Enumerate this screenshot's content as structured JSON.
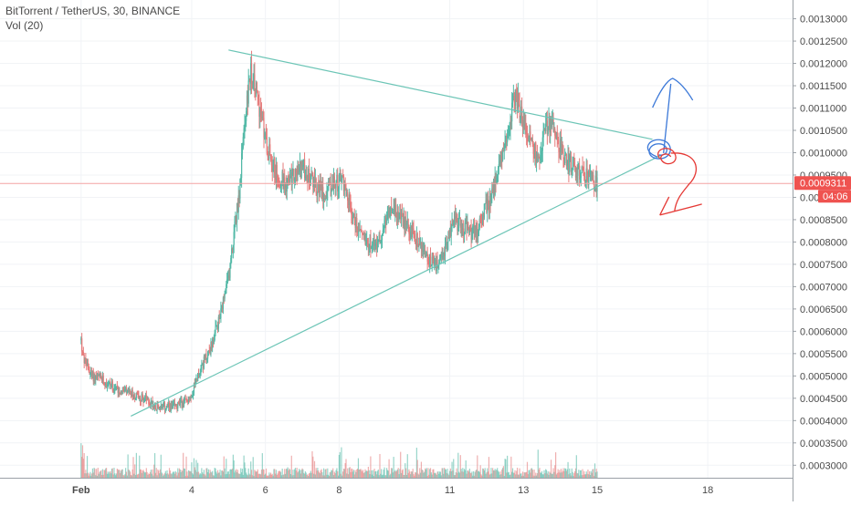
{
  "header": {
    "symbol_line": "BitTorrent / TetherUS, 30, BINANCE",
    "volume_line": "Vol (20)"
  },
  "colors": {
    "up": "#53b9a7",
    "down": "#e57b7b",
    "trendline": "#6cc5b6",
    "price_line": "#f3a3a3",
    "price_badge": "#ef5350",
    "axis_text": "#4a4a4a",
    "grid": "#f1f3f6",
    "blue_drawing": "#3b78d8",
    "red_drawing": "#e53935"
  },
  "chart_data": {
    "type": "candlestick",
    "title": "BitTorrent / TetherUS, 30, BINANCE",
    "xlabel": "",
    "ylabel": "",
    "x_tick_labels": [
      "Feb",
      "4",
      "6",
      "8",
      "11",
      "13",
      "15",
      "18"
    ],
    "x_tick_days": [
      1,
      4,
      6,
      8,
      11,
      13,
      15,
      18
    ],
    "x_range_days": [
      -1.2,
      20.3
    ],
    "y_tick_labels": [
      "0.0003000",
      "0.0003500",
      "0.0004000",
      "0.0004500",
      "0.0005000",
      "0.0005500",
      "0.0006000",
      "0.0006500",
      "0.0007000",
      "0.0007500",
      "0.0008000",
      "0.0008500",
      "0.0009000",
      "0.0009500",
      "0.0010000",
      "0.0010500",
      "0.0011000",
      "0.0011500",
      "0.0012000",
      "0.0012500",
      "0.0013000"
    ],
    "ylim": [
      0.000272,
      0.001342
    ],
    "price_path": {
      "x_days": [
        1.0,
        1.05,
        1.3,
        1.6,
        2.0,
        2.3,
        2.7,
        3.1,
        3.5,
        3.8,
        4.0,
        4.2,
        4.5,
        4.8,
        5.0,
        5.15,
        5.3,
        5.45,
        5.6,
        5.8,
        6.0,
        6.3,
        6.6,
        7.0,
        7.3,
        7.6,
        7.9,
        8.1,
        8.4,
        8.7,
        9.0,
        9.2,
        9.4,
        9.6,
        9.8,
        10.1,
        10.4,
        10.7,
        10.9,
        11.1,
        11.4,
        11.7,
        12.0,
        12.2,
        12.4,
        12.6,
        12.8,
        13.0,
        13.2,
        13.4,
        13.6,
        13.8,
        14.0,
        14.2,
        14.4,
        14.6,
        14.8,
        15.0
      ],
      "prices": [
        0.00058,
        0.00054,
        0.0005,
        0.00049,
        0.00047,
        0.00046,
        0.00045,
        0.00043,
        0.00043,
        0.00044,
        0.00046,
        0.00051,
        0.00056,
        0.00064,
        0.00072,
        0.00082,
        0.00092,
        0.00108,
        0.00118,
        0.00112,
        0.00103,
        0.00095,
        0.00093,
        0.00097,
        0.00093,
        0.00091,
        0.00093,
        0.00094,
        0.00085,
        0.00081,
        0.00079,
        0.00083,
        0.00087,
        0.00086,
        0.00084,
        0.00081,
        0.00076,
        0.00074,
        0.00079,
        0.00085,
        0.00083,
        0.00082,
        0.00088,
        0.00092,
        0.00099,
        0.00107,
        0.00113,
        0.00107,
        0.00102,
        0.00099,
        0.00105,
        0.00107,
        0.00101,
        0.00098,
        0.00096,
        0.00095,
        0.00094,
        0.000931
      ]
    },
    "last_price": 0.0009311,
    "last_price_label": "0.0009311",
    "countdown_label": "04:06",
    "trendlines": [
      {
        "name": "upper",
        "from": {
          "day": 5.0,
          "price": 0.00123
        },
        "to": {
          "day": 16.5,
          "price": 0.00103
        }
      },
      {
        "name": "lower",
        "from": {
          "day": 2.35,
          "price": 0.00041
        },
        "to": {
          "day": 16.75,
          "price": 0.000995
        }
      }
    ],
    "volume_series_name": "Vol (20)",
    "grid": true,
    "legend_position": "top-left",
    "price_axis_position": "right"
  }
}
